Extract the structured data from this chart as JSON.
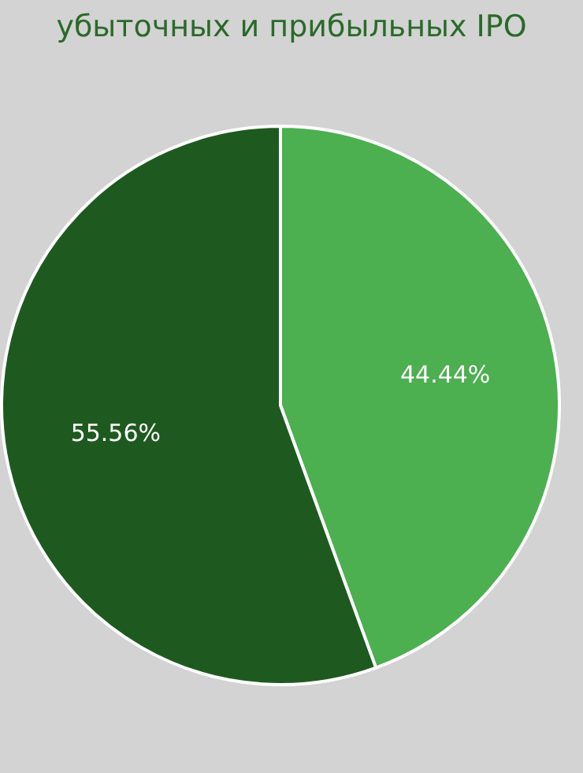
{
  "chart_data": {
    "type": "pie",
    "title": "убыточных и прибыльных IPO",
    "categories": [
      null,
      null
    ],
    "values": [
      44.44,
      55.56
    ],
    "colors": [
      "#4caf50",
      "#1e5a20"
    ],
    "value_labels": [
      "44.44%",
      "55.56%"
    ],
    "legend": false
  }
}
